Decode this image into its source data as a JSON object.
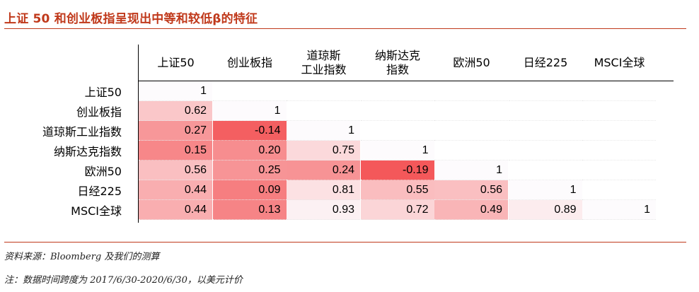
{
  "title": "上证 50 和创业板指呈现出中等和较低β的特征",
  "chart_data": {
    "type": "heatmap",
    "columns": [
      "上证50",
      "创业板指",
      "道琼斯\n工业指数",
      "纳斯达克\n指数",
      "欧洲50",
      "日经225",
      "MSCI全球"
    ],
    "rows": [
      "上证50",
      "创业板指",
      "道琼斯工业指数",
      "纳斯达克指数",
      "欧洲50",
      "日经225",
      "MSCI全球"
    ],
    "values": [
      [
        1,
        null,
        null,
        null,
        null,
        null,
        null
      ],
      [
        0.62,
        1,
        null,
        null,
        null,
        null,
        null
      ],
      [
        0.27,
        -0.14,
        1,
        null,
        null,
        null,
        null
      ],
      [
        0.15,
        0.2,
        0.75,
        1,
        null,
        null,
        null
      ],
      [
        0.56,
        0.25,
        0.24,
        -0.19,
        1,
        null,
        null
      ],
      [
        0.44,
        0.09,
        0.81,
        0.55,
        0.56,
        1,
        null
      ],
      [
        0.44,
        0.13,
        0.93,
        0.72,
        0.49,
        0.89,
        1
      ]
    ],
    "labels": [
      [
        "1",
        "",
        "",
        "",
        "",
        "",
        ""
      ],
      [
        "0.62",
        "1",
        "",
        "",
        "",
        "",
        ""
      ],
      [
        "0.27",
        "-0.14",
        "1",
        "",
        "",
        "",
        ""
      ],
      [
        "0.15",
        "0.20",
        "0.75",
        "1",
        "",
        "",
        ""
      ],
      [
        "0.56",
        "0.25",
        "0.24",
        "-0.19",
        "1",
        "",
        ""
      ],
      [
        "0.44",
        "0.09",
        "0.81",
        "0.55",
        "0.56",
        "1",
        ""
      ],
      [
        "0.44",
        "0.13",
        "0.93",
        "0.72",
        "0.49",
        "0.89",
        "1"
      ]
    ],
    "color_low": "#f4585a",
    "color_high": "#fdfbfd"
  },
  "source_note": "资料来源：Bloomberg 及我们的测算",
  "footnote": "注：数据时间跨度为 2017/6/30-2020/6/30，以美元计价"
}
